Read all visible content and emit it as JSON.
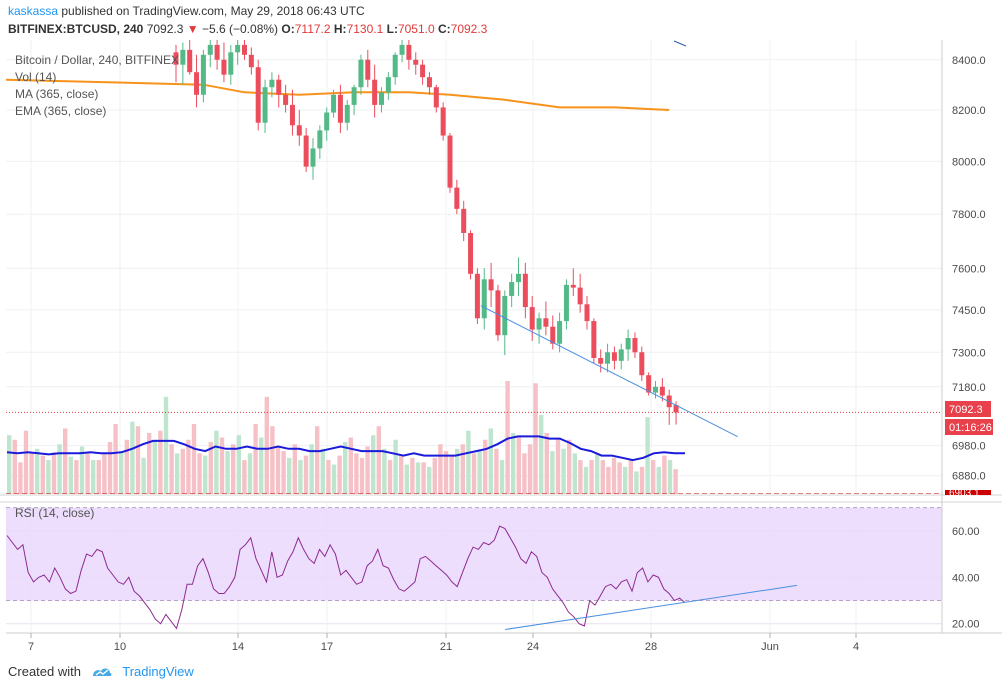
{
  "header": {
    "author": "kaskassa",
    "published": "published on TradingView.com, May 29, 2018 06:43 UTC",
    "symbol": "BITFINEX:BTCUSD, 240",
    "last": "7092.3",
    "change": "−5.6 (−0.08%)",
    "o_label": "O:",
    "o": "7117.2",
    "h_label": "H:",
    "h": "7130.1",
    "l_label": "L:",
    "l": "7051.0",
    "c_label": "C:",
    "c": "7092.3"
  },
  "legend": {
    "title": "Bitcoin / Dollar, 240, BITFINEX",
    "vol": "Vol (14)",
    "ma": "MA (365, close)",
    "ema": "EMA (365, close)"
  },
  "price_labels": {
    "last": "7092.3",
    "countdown": "01:16:26",
    "hidden": "6903.1"
  },
  "rsi_panel": {
    "label": "RSI (14, close)"
  },
  "footer": {
    "created": "Created with",
    "brand": "TradingView"
  },
  "colors": {
    "up": "#53b987",
    "down": "#eb4d5c",
    "ma": "#f7931a",
    "vol_ma": "#1a1adb",
    "rsi": "#8e2a8e",
    "rsi_band": "#e9d8fb",
    "trend": "#4a8fe0"
  },
  "chart_data": [
    {
      "type": "candlestick",
      "title": "Bitcoin / Dollar, 240, BITFINEX",
      "x_ticks": [
        "7",
        "10",
        "14",
        "17",
        "21",
        "24",
        "28",
        "Jun",
        "4"
      ],
      "y_ticks": [
        8400.0,
        8200.0,
        8000.0,
        7800.0,
        7600.0,
        7450.0,
        7300.0,
        7180.0,
        6980.0,
        6880.0
      ],
      "y_axis": "log",
      "ylim": [
        6820,
        8480
      ],
      "last_price": 7092.3,
      "ohlc": [
        [
          8430,
          8460,
          8310,
          8380
        ],
        [
          8380,
          8470,
          8300,
          8440
        ],
        [
          8440,
          8480,
          8340,
          8350
        ],
        [
          8350,
          8420,
          8210,
          8260
        ],
        [
          8260,
          8440,
          8230,
          8420
        ],
        [
          8420,
          8480,
          8370,
          8460
        ],
        [
          8460,
          8480,
          8360,
          8400
        ],
        [
          8400,
          8470,
          8310,
          8340
        ],
        [
          8340,
          8460,
          8300,
          8430
        ],
        [
          8430,
          8480,
          8380,
          8460
        ],
        [
          8460,
          8480,
          8400,
          8420
        ],
        [
          8420,
          8450,
          8340,
          8370
        ],
        [
          8370,
          8400,
          8120,
          8150
        ],
        [
          8150,
          8320,
          8110,
          8290
        ],
        [
          8290,
          8350,
          8250,
          8320
        ],
        [
          8320,
          8340,
          8210,
          8260
        ],
        [
          8260,
          8300,
          8190,
          8220
        ],
        [
          8220,
          8280,
          8100,
          8140
        ],
        [
          8140,
          8200,
          8060,
          8100
        ],
        [
          8100,
          8130,
          7960,
          7980
        ],
        [
          7980,
          8090,
          7930,
          8050
        ],
        [
          8050,
          8140,
          8010,
          8120
        ],
        [
          8120,
          8210,
          8080,
          8190
        ],
        [
          8190,
          8280,
          8170,
          8260
        ],
        [
          8260,
          8300,
          8110,
          8150
        ],
        [
          8150,
          8240,
          8120,
          8220
        ],
        [
          8220,
          8300,
          8180,
          8290
        ],
        [
          8290,
          8420,
          8260,
          8400
        ],
        [
          8400,
          8440,
          8290,
          8320
        ],
        [
          8320,
          8380,
          8170,
          8220
        ],
        [
          8220,
          8290,
          8190,
          8270
        ],
        [
          8270,
          8350,
          8240,
          8330
        ],
        [
          8330,
          8430,
          8300,
          8420
        ],
        [
          8420,
          8480,
          8390,
          8460
        ],
        [
          8460,
          8480,
          8360,
          8400
        ],
        [
          8400,
          8430,
          8340,
          8380
        ],
        [
          8380,
          8400,
          8300,
          8330
        ],
        [
          8330,
          8350,
          8260,
          8290
        ],
        [
          8290,
          8300,
          8190,
          8210
        ],
        [
          8210,
          8230,
          8080,
          8100
        ],
        [
          8100,
          8110,
          7880,
          7900
        ],
        [
          7900,
          7930,
          7800,
          7820
        ],
        [
          7820,
          7850,
          7700,
          7730
        ],
        [
          7730,
          7740,
          7560,
          7580
        ],
        [
          7580,
          7600,
          7400,
          7420
        ],
        [
          7420,
          7600,
          7380,
          7560
        ],
        [
          7560,
          7620,
          7460,
          7520
        ],
        [
          7520,
          7540,
          7340,
          7360
        ],
        [
          7360,
          7520,
          7290,
          7500
        ],
        [
          7500,
          7580,
          7460,
          7550
        ],
        [
          7550,
          7640,
          7500,
          7580
        ],
        [
          7580,
          7620,
          7420,
          7460
        ],
        [
          7460,
          7500,
          7340,
          7380
        ],
        [
          7380,
          7440,
          7330,
          7420
        ],
        [
          7420,
          7480,
          7360,
          7390
        ],
        [
          7390,
          7430,
          7310,
          7330
        ],
        [
          7330,
          7440,
          7300,
          7410
        ],
        [
          7410,
          7560,
          7380,
          7540
        ],
        [
          7540,
          7600,
          7500,
          7530
        ],
        [
          7530,
          7580,
          7440,
          7470
        ],
        [
          7470,
          7500,
          7380,
          7410
        ],
        [
          7410,
          7420,
          7260,
          7280
        ],
        [
          7280,
          7310,
          7230,
          7260
        ],
        [
          7260,
          7330,
          7230,
          7300
        ],
        [
          7300,
          7320,
          7240,
          7270
        ],
        [
          7270,
          7330,
          7240,
          7310
        ],
        [
          7310,
          7380,
          7270,
          7350
        ],
        [
          7350,
          7370,
          7280,
          7300
        ],
        [
          7300,
          7320,
          7200,
          7220
        ],
        [
          7220,
          7230,
          7150,
          7160
        ],
        [
          7160,
          7200,
          7140,
          7180
        ],
        [
          7180,
          7210,
          7130,
          7150
        ],
        [
          7150,
          7170,
          7050,
          7110
        ],
        [
          7117.2,
          7130.1,
          7051.0,
          7092.3
        ]
      ],
      "series": [
        {
          "name": "MA (365, close)",
          "points": [
            [
              0,
              8320
            ],
            [
              4,
              8300
            ],
            [
              10,
              8270
            ],
            [
              18,
              8260
            ],
            [
              26,
              8270
            ],
            [
              34,
              8270
            ],
            [
              40,
              8260
            ],
            [
              48,
              8240
            ],
            [
              56,
              8210
            ],
            [
              64,
              8210
            ],
            [
              72,
              8200
            ]
          ]
        },
        {
          "name": "EMA (365, close)",
          "points": []
        }
      ],
      "trendline": [
        [
          44.5,
          7465
        ],
        [
          66.8,
          7160
        ],
        [
          82,
          7010
        ]
      ]
    },
    {
      "type": "bar",
      "title": "Vol (14)",
      "volume_relative": [
        0.52,
        0.48,
        0.28,
        0.56,
        0.36,
        0.4,
        0.34,
        0.3,
        0.37,
        0.44,
        0.58,
        0.33,
        0.3,
        0.42,
        0.36,
        0.3,
        0.3,
        0.36,
        0.46,
        0.62,
        0.38,
        0.48,
        0.64,
        0.6,
        0.32,
        0.54,
        0.48,
        0.56,
        0.86,
        0.44,
        0.36,
        0.4,
        0.48,
        0.62,
        0.36,
        0.34,
        0.46,
        0.56,
        0.5,
        0.38,
        0.44,
        0.52,
        0.3,
        0.36,
        0.62,
        0.5,
        0.86,
        0.6,
        0.42,
        0.38,
        0.32,
        0.44,
        0.3,
        0.34,
        0.44,
        0.6,
        0.4,
        0.3,
        0.26,
        0.34,
        0.46,
        0.5,
        0.36,
        0.32,
        0.42,
        0.52,
        0.6,
        0.4,
        0.3,
        0.48,
        0.34,
        0.26,
        0.32,
        0.28,
        0.28,
        0.24,
        0.32,
        0.44,
        0.38,
        0.34,
        0.4,
        0.44,
        0.56,
        0.36,
        0.38,
        0.48,
        0.58,
        0.4,
        0.3,
        1.0,
        0.54,
        0.5,
        0.36,
        0.44,
        0.98,
        0.7,
        0.54,
        0.38,
        0.5,
        0.4,
        0.48,
        0.36,
        0.3,
        0.24,
        0.3,
        0.36,
        0.3,
        0.24,
        0.32,
        0.28,
        0.24,
        0.3,
        0.2,
        0.24,
        0.68,
        0.3,
        0.24,
        0.34,
        0.3,
        0.22
      ],
      "vol_ma_relative": [
        0.37,
        0.36,
        0.37,
        0.36,
        0.35,
        0.36,
        0.36,
        0.36,
        0.37,
        0.36,
        0.36,
        0.37,
        0.4,
        0.44,
        0.47,
        0.47,
        0.47,
        0.44,
        0.4,
        0.38,
        0.42,
        0.4,
        0.4,
        0.42,
        0.4,
        0.4,
        0.42,
        0.4,
        0.4,
        0.38,
        0.38,
        0.4,
        0.42,
        0.4,
        0.38,
        0.38,
        0.38,
        0.36,
        0.34,
        0.36,
        0.34,
        0.34,
        0.34,
        0.34,
        0.36,
        0.38,
        0.4,
        0.44,
        0.49,
        0.51,
        0.51,
        0.51,
        0.49,
        0.49,
        0.45,
        0.4,
        0.38,
        0.34,
        0.34,
        0.32,
        0.3,
        0.32,
        0.36,
        0.37,
        0.36,
        0.36
      ]
    },
    {
      "type": "line",
      "title": "RSI (14, close)",
      "y_ticks": [
        60.0,
        40.0,
        20.0
      ],
      "ylim": [
        16,
        72
      ],
      "bands": [
        30,
        70
      ],
      "series": [
        {
          "name": "RSI (14, close)",
          "values": [
            58,
            55,
            52,
            54,
            42,
            38,
            40,
            41,
            38,
            44,
            40,
            35,
            33,
            34,
            43,
            50,
            49,
            52,
            51,
            44,
            41,
            38,
            37,
            40,
            34,
            32,
            29,
            26,
            22,
            20,
            24,
            21,
            18,
            26,
            37,
            37,
            45,
            48,
            42,
            35,
            33,
            33,
            36,
            40,
            52,
            54,
            57,
            48,
            43,
            38,
            51,
            40,
            41,
            47,
            51,
            57,
            52,
            48,
            46,
            52,
            49,
            54,
            50,
            41,
            43,
            40,
            37,
            38,
            45,
            47,
            52,
            45,
            44,
            39,
            35,
            34,
            36,
            38,
            48,
            49,
            47,
            45,
            43,
            41,
            38,
            36,
            42,
            48,
            53,
            52,
            55,
            54,
            56,
            62,
            61,
            57,
            53,
            48,
            46,
            51,
            49,
            42,
            40,
            35,
            32,
            29,
            25,
            23,
            20,
            19,
            30,
            28,
            32,
            36,
            37,
            35,
            38,
            39,
            34,
            42,
            44,
            38,
            41,
            40,
            35,
            33,
            30,
            31,
            29
          ]
        }
      ],
      "trendline": [
        [
          -0.5,
          17.5
        ],
        [
          22.3,
          36.5
        ]
      ]
    }
  ]
}
